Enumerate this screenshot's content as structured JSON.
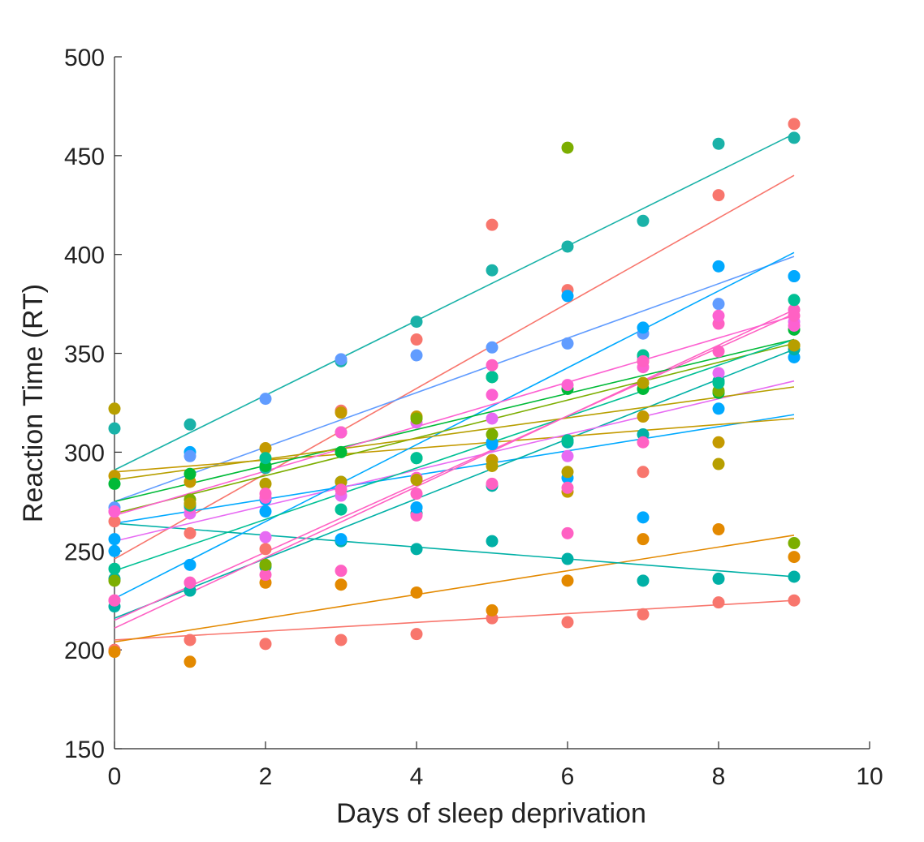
{
  "chart_data": {
    "type": "scatter",
    "xlabel": "Days of sleep deprivation",
    "ylabel": "Reaction Time (RT)",
    "xlim": [
      0,
      10
    ],
    "ylim": [
      150,
      500
    ],
    "xticks": [
      0,
      2,
      4,
      6,
      8,
      10
    ],
    "yticks": [
      150,
      200,
      250,
      300,
      350,
      400,
      450,
      500
    ],
    "grid": false,
    "legend": "none",
    "series": [
      {
        "color": "#1ab2a8",
        "x": [
          0,
          1,
          2,
          3,
          4,
          5,
          6,
          7,
          8,
          9
        ],
        "y": [
          312,
          314,
          292,
          346,
          366,
          392,
          404,
          417,
          456,
          459
        ],
        "fit": [
          291,
          461
        ]
      },
      {
        "color": "#f8766d",
        "x": [
          0,
          1,
          2,
          3,
          4,
          5,
          6,
          7,
          8,
          9
        ],
        "y": [
          200,
          205,
          203,
          205,
          208,
          216,
          214,
          218,
          224,
          225
        ],
        "fit": [
          205,
          225
        ]
      },
      {
        "color": "#e38900",
        "x": [
          0,
          1,
          2,
          3,
          4,
          5,
          6,
          7,
          8,
          9
        ],
        "y": [
          199,
          194,
          234,
          233,
          229,
          220,
          235,
          256,
          261,
          247
        ],
        "fit": [
          204,
          258
        ]
      },
      {
        "color": "#f8766d",
        "x": [
          0,
          1,
          2,
          3,
          4,
          5,
          6,
          7,
          8,
          9
        ],
        "y": [
          265,
          259,
          251,
          321,
          357,
          415,
          382,
          290,
          430,
          466
        ],
        "fit": [
          246,
          440
        ]
      },
      {
        "color": "#00a9ff",
        "x": [
          0,
          1,
          2,
          3,
          4,
          5,
          6,
          7,
          8,
          9
        ],
        "y": [
          250,
          300,
          270,
          285,
          272,
          305,
          287,
          267,
          322,
          348
        ],
        "fit": [
          264,
          319
        ]
      },
      {
        "color": "#00b0a6",
        "x": [
          0,
          1,
          2,
          3,
          4,
          5,
          6,
          7,
          8,
          9
        ],
        "y": [
          236,
          230,
          243,
          255,
          251,
          255,
          246,
          235,
          236,
          237
        ],
        "fit": [
          264,
          237
        ]
      },
      {
        "color": "#00b0a6",
        "x": [
          0,
          1,
          2,
          3,
          4,
          5,
          6,
          7,
          8,
          9
        ],
        "y": [
          222,
          230,
          242,
          255,
          269,
          283,
          305,
          309,
          336,
          352
        ],
        "fit": [
          216,
          352
        ]
      },
      {
        "color": "#619cff",
        "x": [
          0,
          1,
          2,
          3,
          4,
          5,
          6,
          7,
          8,
          9
        ],
        "y": [
          272,
          298,
          327,
          347,
          349,
          353,
          355,
          360,
          375,
          389
        ],
        "fit": [
          275,
          399
        ]
      },
      {
        "color": "#c49a00",
        "x": [
          0,
          1,
          2,
          3,
          4,
          5,
          6,
          7,
          8,
          9
        ],
        "y": [
          288,
          285,
          302,
          320,
          318,
          296,
          280,
          318,
          305,
          354
        ],
        "fit": [
          290,
          317
        ]
      },
      {
        "color": "#ff61c3",
        "x": [
          0,
          1,
          2,
          3,
          4,
          5,
          6,
          7,
          8,
          9
        ],
        "y": [
          225,
          234,
          238,
          240,
          268,
          284,
          259,
          305,
          365,
          372
        ],
        "fit": [
          211,
          372
        ]
      },
      {
        "color": "#e76bf3",
        "x": [
          0,
          1,
          2,
          3,
          4,
          5,
          6,
          7,
          8,
          9
        ],
        "y": [
          270,
          269,
          257,
          278,
          315,
          317,
          298,
          348,
          340,
          366
        ],
        "fit": [
          255,
          336
        ]
      },
      {
        "color": "#00a9ff",
        "x": [
          0,
          1,
          2,
          3,
          4,
          5,
          6,
          7,
          8,
          9
        ],
        "y": [
          256,
          243,
          276,
          256,
          272,
          304,
          379,
          363,
          394,
          389
        ],
        "fit": [
          226,
          401
        ]
      },
      {
        "color": "#00ba38",
        "x": [
          0,
          1,
          2,
          3,
          4,
          5,
          6,
          7,
          8,
          9
        ],
        "y": [
          284,
          289,
          293,
          300,
          297,
          338,
          332,
          332,
          330,
          362
        ],
        "fit": [
          275,
          357
        ]
      },
      {
        "color": "#7cae00",
        "x": [
          0,
          1,
          2,
          3,
          4,
          5,
          6,
          7,
          8,
          9
        ],
        "y": [
          235,
          276,
          243,
          310,
          317,
          309,
          454,
          346,
          331,
          254
        ],
        "fit": [
          269,
          355
        ]
      },
      {
        "color": "#fd61d1",
        "x": [
          0,
          1,
          2,
          3,
          4,
          5,
          6,
          7,
          8,
          9
        ],
        "y": [
          270,
          272,
          277,
          310,
          287,
          329,
          334,
          343,
          369,
          364
        ],
        "fit": [
          268,
          369
        ]
      },
      {
        "color": "#00c094",
        "x": [
          0,
          1,
          2,
          3,
          4,
          5,
          6,
          7,
          8,
          9
        ],
        "y": [
          241,
          273,
          297,
          271,
          297,
          338,
          306,
          349,
          335,
          377
        ],
        "fit": [
          240,
          357
        ]
      },
      {
        "color": "#b79f00",
        "x": [
          0,
          1,
          2,
          3,
          4,
          5,
          6,
          7,
          8,
          9
        ],
        "y": [
          322,
          274,
          284,
          285,
          286,
          293,
          290,
          335,
          294,
          354
        ],
        "fit": [
          286,
          333
        ]
      },
      {
        "color": "#ff61c3",
        "x": [
          0,
          1,
          2,
          3,
          4,
          5,
          6,
          7,
          8,
          9
        ],
        "y": [
          225,
          234,
          279,
          281,
          279,
          344,
          282,
          346,
          351,
          369
        ],
        "fit": [
          215,
          370
        ]
      }
    ]
  }
}
